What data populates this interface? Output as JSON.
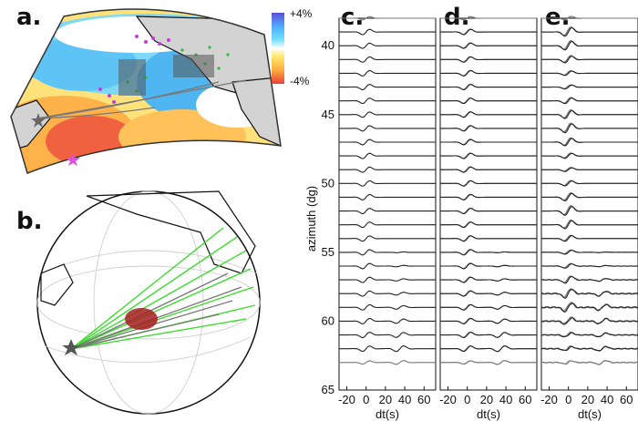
{
  "panels": {
    "a": "a.",
    "b": "b.",
    "c": "c.",
    "d": "d.",
    "e": "e."
  },
  "colorbar": {
    "max_label": "+4%",
    "min_label": "-4%",
    "colors": [
      "#5a4fd6",
      "#4fb0ff",
      "#74e0ff",
      "#ffffff",
      "#ffe86a",
      "#ffae3d",
      "#e8403e"
    ]
  },
  "chart_data": {
    "type": "line",
    "ylabel": "azimuth (dg)",
    "xlabel": "dt(s)",
    "yticks": [
      40,
      45,
      50,
      55,
      60,
      65
    ],
    "ylim": [
      38,
      65
    ],
    "xticks": [
      -20,
      0,
      20,
      40,
      60
    ],
    "xlim": [
      -28,
      72
    ],
    "azimuths": [
      38,
      39,
      40,
      41,
      42,
      43,
      44,
      45,
      46,
      47,
      48,
      49,
      50,
      51,
      52,
      53,
      54,
      55,
      56,
      57,
      58,
      59,
      60,
      61,
      62,
      63
    ],
    "panels": [
      "c",
      "d",
      "e"
    ]
  },
  "colors": {
    "ray_green": "#3ddc2f",
    "ray_gray": "#777777",
    "station_magenta": "#c93bd6",
    "source_star": "#e04fe0",
    "trace": "#222222",
    "land": "#d3d3d3"
  }
}
